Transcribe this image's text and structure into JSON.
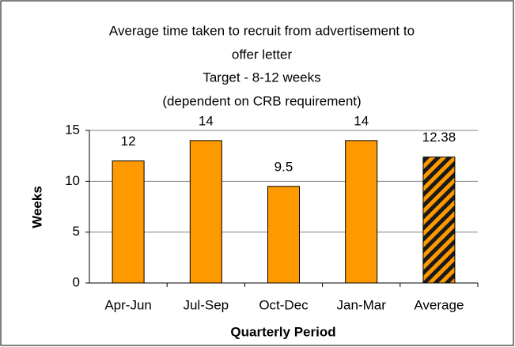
{
  "chart_data": {
    "type": "bar",
    "title": [
      "Average time taken to recruit from advertisement to",
      "offer letter"
    ],
    "subtitle": [
      "Target - 8-12 weeks",
      "(dependent on CRB requirement)"
    ],
    "x_label": "Quarterly Period",
    "y_label": "Weeks",
    "categories": [
      "Apr-Jun",
      "Jul-Sep",
      "Oct-Dec",
      "Jan-Mar",
      "Average"
    ],
    "values": [
      12,
      14,
      9.5,
      14,
      12.38
    ],
    "hatched": [
      false,
      false,
      false,
      false,
      true
    ],
    "color": "#ff9900",
    "ylim": [
      0,
      15
    ],
    "yticks": [
      0,
      5,
      10,
      15
    ],
    "grid": true
  }
}
